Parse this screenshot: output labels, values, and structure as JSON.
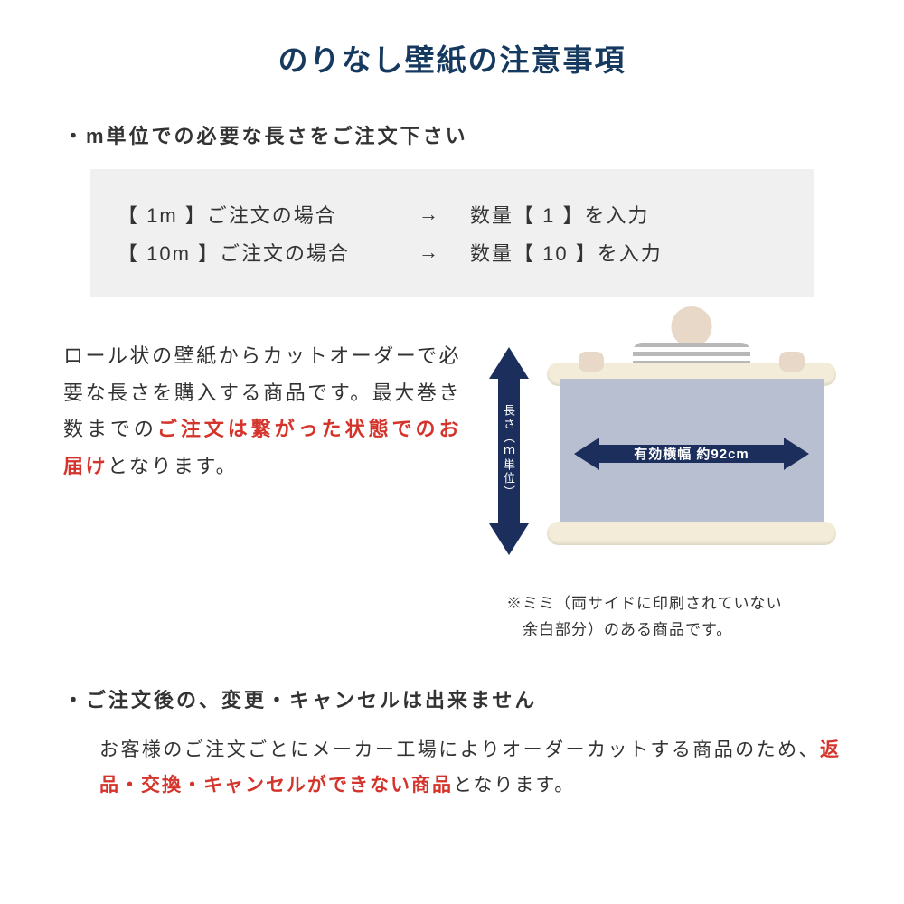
{
  "colors": {
    "title": "#163a5f",
    "body_text": "#333333",
    "highlight": "#d4342b",
    "arrow_fill": "#1b2e5c",
    "arrow_text": "#ffffff",
    "order_box_bg": "#f0f0f0",
    "paper_fill": "#b8bfd0",
    "roll_fill": "#f2ecd8"
  },
  "title": "のりなし壁紙の注意事項",
  "bullet1": "・m単位での必要な長さをご注文下さい",
  "order_examples": [
    {
      "left": "【 1m 】ご注文の場合",
      "arrow": "→",
      "right": "数量【 1 】を入力"
    },
    {
      "left": "【 10m 】ご注文の場合",
      "arrow": "→",
      "right": "数量【 10 】を入力"
    }
  ],
  "mid_text": {
    "p1": "ロール状の壁紙からカットオーダーで必要な長さを購入する商品です。最大巻き数までの",
    "p2_red": "ご注文は繋がった状態でのお届け",
    "p3": "となります。"
  },
  "diagram": {
    "vertical_label": "長さ（ｍ単位）",
    "horizontal_label": "有効横幅 約92cm"
  },
  "mimi_note": {
    "line1": "※ミミ（両サイドに印刷されていない",
    "line2": "　余白部分）のある商品です。"
  },
  "bullet2": "・ご注文後の、変更・キャンセルは出来ません",
  "cancel_text": {
    "p1": "お客様のご注文ごとにメーカー工場によりオーダーカットする商品のため、",
    "p2_red": "返品・交換・キャンセルができない商品",
    "p3": "となります。"
  }
}
